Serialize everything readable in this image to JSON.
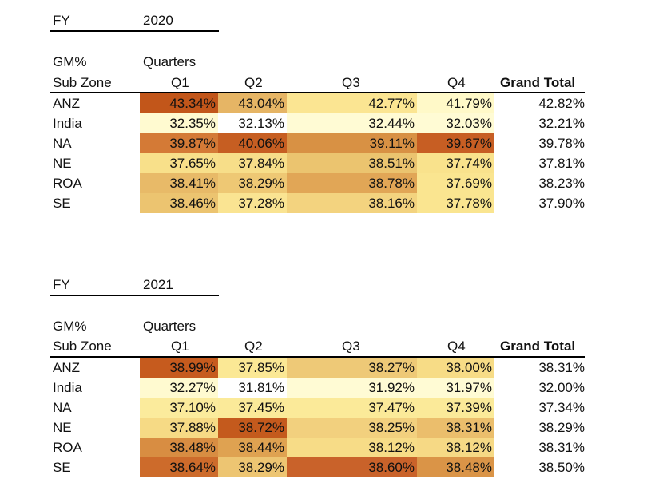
{
  "colors": {
    "heat_dark": "#c2561a",
    "heat_high": "#d7893f",
    "heat_mid": "#e6b565",
    "heat_low": "#f5de8c",
    "heat_lighter": "#fbea97",
    "heat_lightest": "#fff9c8"
  },
  "tables": [
    {
      "fy_label": "FY",
      "fy_value": "2020",
      "metric_label": "GM%",
      "quarters_label": "Quarters",
      "row_header": "Sub Zone",
      "columns": [
        "Q1",
        "Q2",
        "Q3",
        "Q4"
      ],
      "total_header": "Grand Total",
      "rows": [
        {
          "name": "ANZ",
          "values": [
            "43.34%",
            "43.04%",
            "42.77%",
            "41.79%"
          ],
          "total": "42.82%"
        },
        {
          "name": "India",
          "values": [
            "32.35%",
            "32.13%",
            "32.44%",
            "32.03%"
          ],
          "total": "32.21%"
        },
        {
          "name": "NA",
          "values": [
            "39.87%",
            "40.06%",
            "39.11%",
            "39.67%"
          ],
          "total": "39.78%"
        },
        {
          "name": "NE",
          "values": [
            "37.65%",
            "37.84%",
            "38.51%",
            "37.74%"
          ],
          "total": "37.81%"
        },
        {
          "name": "ROA",
          "values": [
            "38.41%",
            "38.29%",
            "38.78%",
            "37.69%"
          ],
          "total": "38.23%"
        },
        {
          "name": "SE",
          "values": [
            "38.46%",
            "37.28%",
            "38.16%",
            "37.78%"
          ],
          "total": "37.90%"
        }
      ]
    },
    {
      "fy_label": "FY",
      "fy_value": "2021",
      "metric_label": "GM%",
      "quarters_label": "Quarters",
      "row_header": "Sub Zone",
      "columns": [
        "Q1",
        "Q2",
        "Q3",
        "Q4"
      ],
      "total_header": "Grand Total",
      "rows": [
        {
          "name": "ANZ",
          "values": [
            "38.99%",
            "37.85%",
            "38.27%",
            "38.00%"
          ],
          "total": "38.31%"
        },
        {
          "name": "India",
          "values": [
            "32.27%",
            "31.81%",
            "31.92%",
            "31.97%"
          ],
          "total": "32.00%"
        },
        {
          "name": "NA",
          "values": [
            "37.10%",
            "37.45%",
            "37.47%",
            "37.39%"
          ],
          "total": "37.34%"
        },
        {
          "name": "NE",
          "values": [
            "37.88%",
            "38.72%",
            "38.25%",
            "38.31%"
          ],
          "total": "38.29%"
        },
        {
          "name": "ROA",
          "values": [
            "38.48%",
            "38.44%",
            "38.12%",
            "38.12%"
          ],
          "total": "38.31%"
        },
        {
          "name": "SE",
          "values": [
            "38.64%",
            "38.29%",
            "38.60%",
            "38.48%"
          ],
          "total": "38.50%"
        }
      ]
    }
  ]
}
